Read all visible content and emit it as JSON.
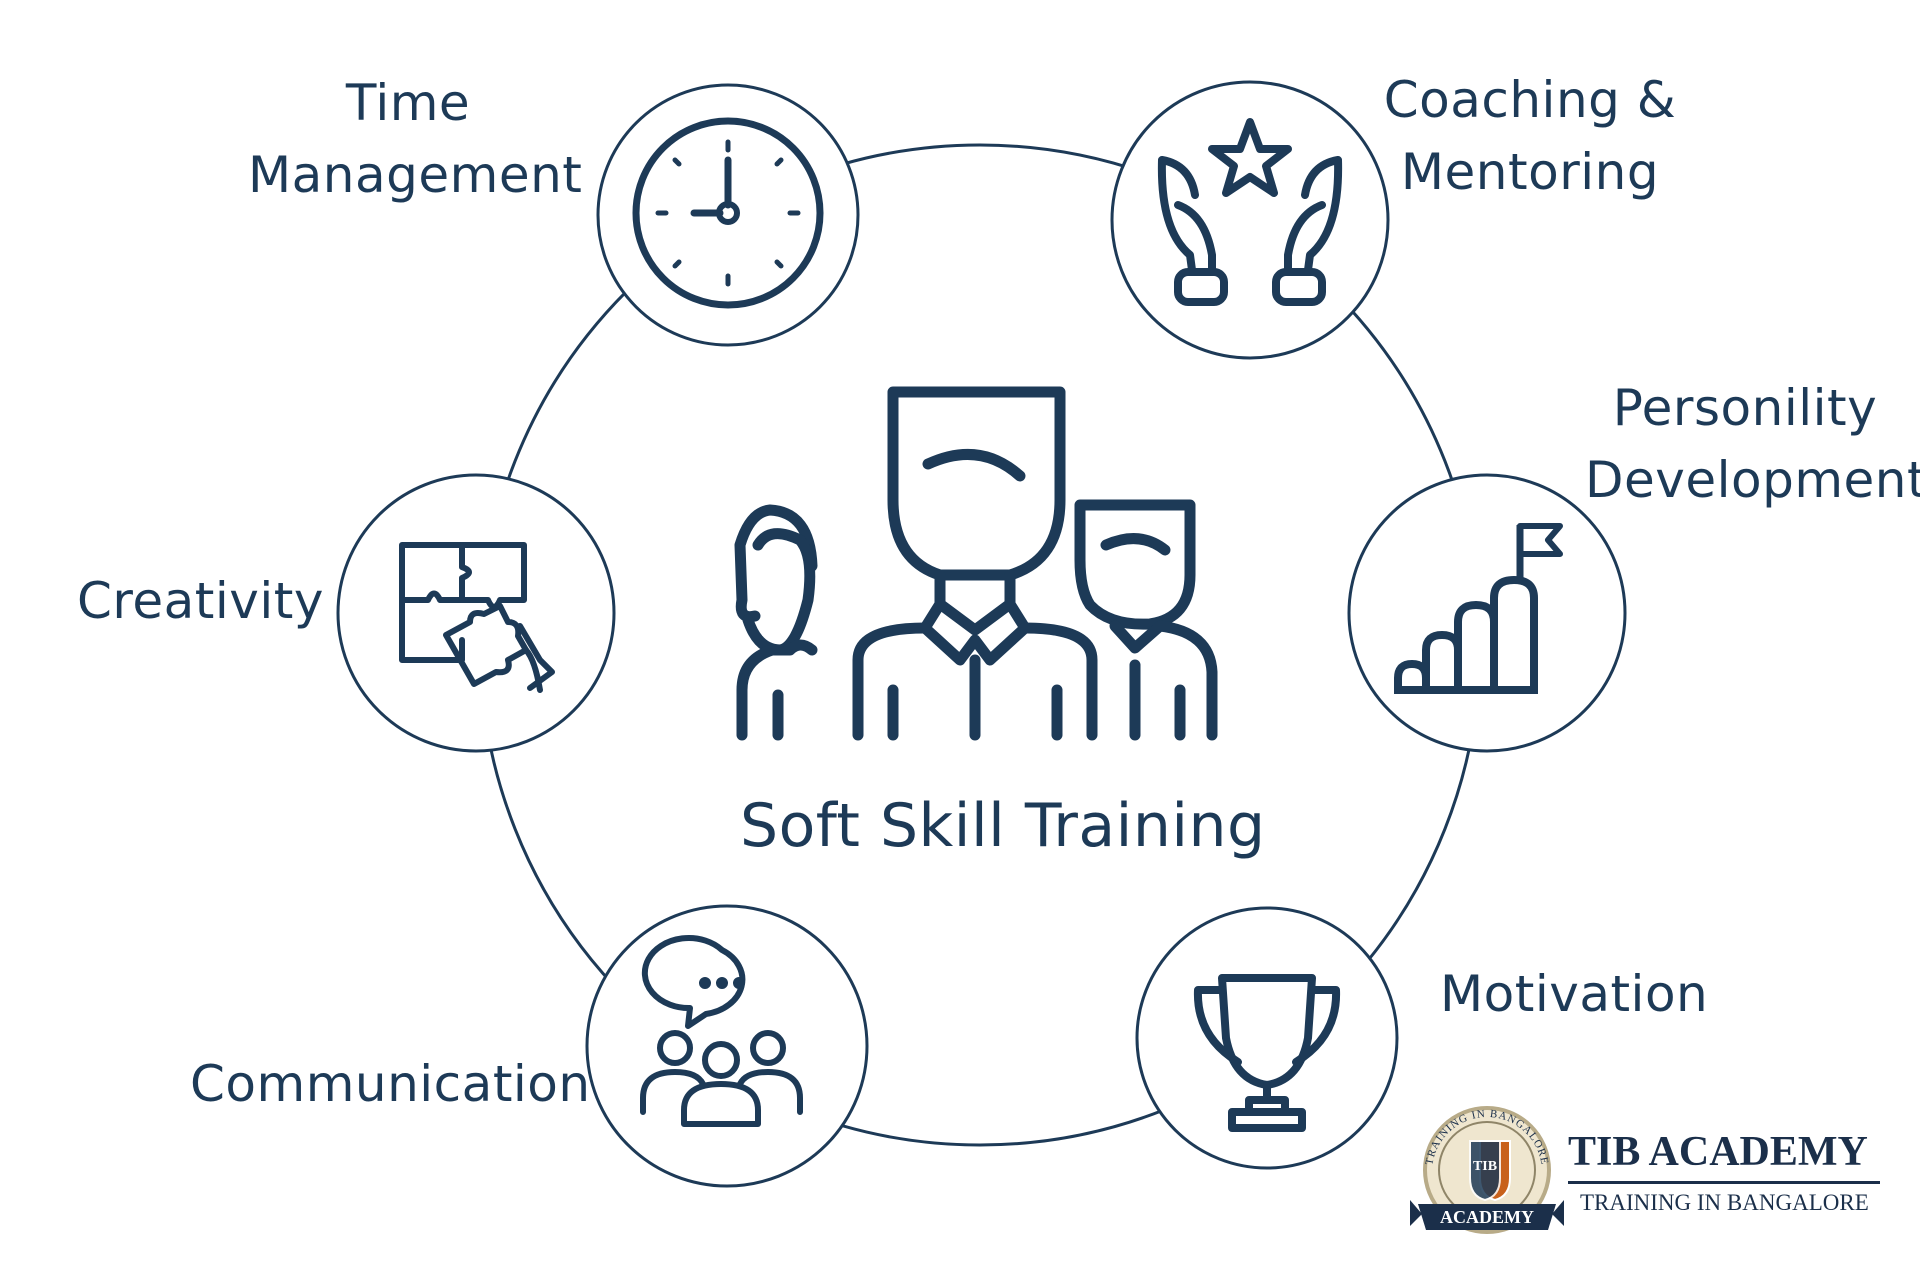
{
  "diagram": {
    "center": {
      "title": "Soft Skill Training",
      "icon": "team-people-icon"
    },
    "nodes": [
      {
        "id": "time-management",
        "label_lines": [
          "Time",
          "Management"
        ],
        "icon": "clock-icon"
      },
      {
        "id": "coaching-mentoring",
        "label_lines": [
          "Coaching &",
          "Mentoring"
        ],
        "icon": "hands-star-icon"
      },
      {
        "id": "personality-development",
        "label_lines": [
          "Personility",
          "Development"
        ],
        "icon": "growth-steps-flag-icon"
      },
      {
        "id": "motivation",
        "label_lines": [
          "Motivation"
        ],
        "icon": "trophy-icon"
      },
      {
        "id": "communication",
        "label_lines": [
          "Communication"
        ],
        "icon": "group-chat-icon"
      },
      {
        "id": "creativity",
        "label_lines": [
          "Creativity"
        ],
        "icon": "puzzle-hand-icon"
      }
    ]
  },
  "logo": {
    "name": "TIB ACADEMY",
    "tagline": "TRAINING IN BANGALORE",
    "seal_arc_text": "TRAINING IN BANGALORE",
    "seal_center_text": "TIB",
    "seal_ribbon_text": "ACADEMY"
  },
  "colors": {
    "primary": "#1d3a57",
    "background": "#ffffff",
    "seal_orange": "#c8611c",
    "seal_cream": "#efe6cf"
  }
}
